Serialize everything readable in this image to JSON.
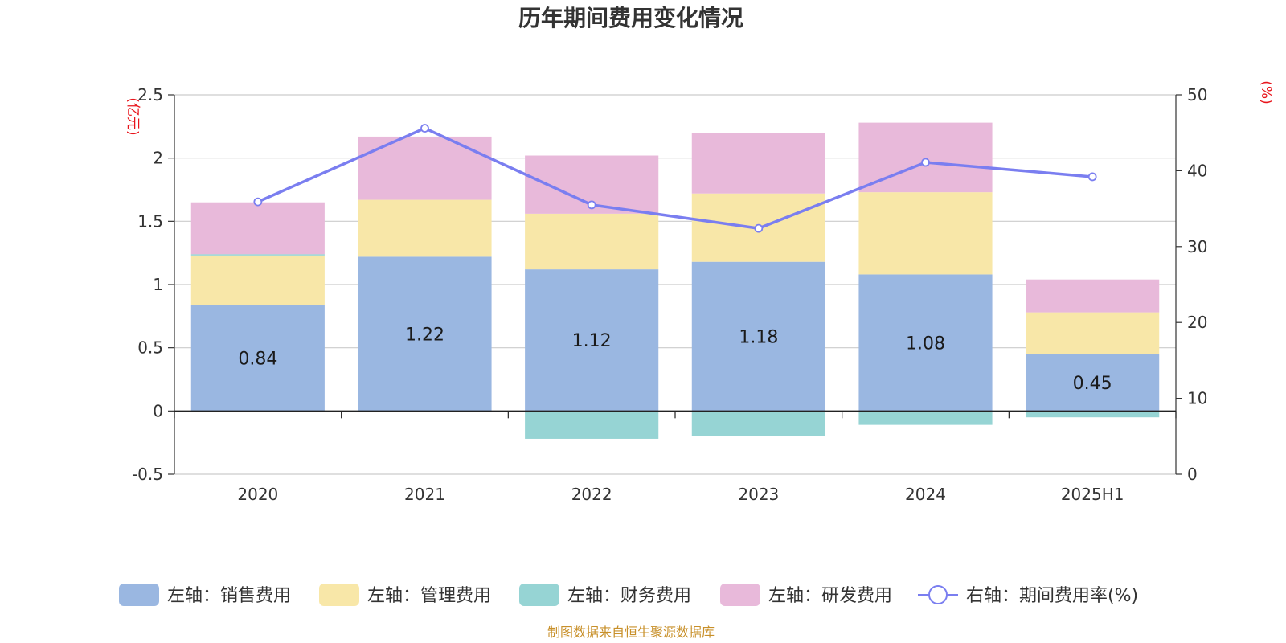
{
  "chart_data": {
    "type": "bar",
    "stacked": true,
    "title": "历年期间费用变化情况",
    "categories": [
      "2020",
      "2021",
      "2022",
      "2023",
      "2024",
      "2025H1"
    ],
    "left_axis": {
      "unit": "(亿元)",
      "range": [
        -0.5,
        2.5
      ],
      "ticks": [
        -0.5,
        0,
        0.5,
        1,
        1.5,
        2,
        2.5
      ],
      "tick_labels": [
        "-0.5",
        "0",
        "0.5",
        "1",
        "1.5",
        "2",
        "2.5"
      ]
    },
    "right_axis": {
      "unit": "(%)",
      "range": [
        0,
        50
      ],
      "ticks": [
        0,
        10,
        20,
        30,
        40,
        50
      ],
      "tick_labels": [
        "0",
        "10",
        "20",
        "30",
        "40",
        "50"
      ]
    },
    "series": [
      {
        "name": "左轴：销售费用",
        "axis": "left",
        "type": "bar",
        "color": "#9ab7e1",
        "values": [
          0.84,
          1.22,
          1.12,
          1.18,
          1.08,
          0.45
        ],
        "labels": [
          "0.84",
          "1.22",
          "1.12",
          "1.18",
          "1.08",
          "0.45"
        ]
      },
      {
        "name": "左轴：管理费用",
        "axis": "left",
        "type": "bar",
        "color": "#f8e7a8",
        "values": [
          0.39,
          0.45,
          0.44,
          0.54,
          0.65,
          0.33
        ]
      },
      {
        "name": "左轴：财务费用",
        "axis": "left",
        "type": "bar",
        "color": "#96d4d4",
        "values": [
          0.01,
          0.0,
          -0.22,
          -0.2,
          -0.11,
          -0.05
        ]
      },
      {
        "name": "左轴：研发费用",
        "axis": "left",
        "type": "bar",
        "color": "#e8b9da",
        "values": [
          0.41,
          0.5,
          0.46,
          0.48,
          0.55,
          0.26
        ]
      },
      {
        "name": "右轴：期间费用率(%)",
        "axis": "right",
        "type": "line",
        "color": "#7a7ef0",
        "values": [
          35.9,
          45.6,
          35.5,
          32.4,
          41.1,
          39.2
        ]
      }
    ],
    "grid": true,
    "legend_position": "bottom"
  },
  "source": "制图数据来自恒生聚源数据库"
}
